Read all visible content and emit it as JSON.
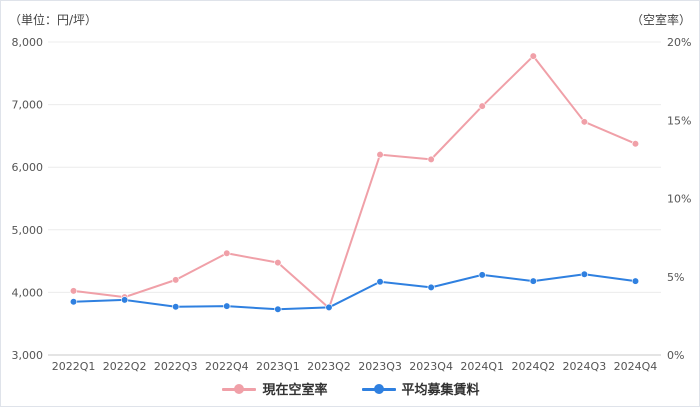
{
  "chart_data": {
    "type": "line",
    "y_left_unit": "（単位：円/坪）",
    "y_right_unit": "（空室率）",
    "categories": [
      "2022Q1",
      "2022Q2",
      "2022Q3",
      "2022Q4",
      "2023Q1",
      "2023Q2",
      "2023Q3",
      "2023Q4",
      "2024Q1",
      "2024Q2",
      "2024Q3",
      "2024Q4"
    ],
    "y_left_ticks": [
      "8,000",
      "7,000",
      "6,000",
      "5,000",
      "4,000",
      "3,000"
    ],
    "y_right_ticks": [
      "20%",
      "15%",
      "10%",
      "5%",
      "0%"
    ],
    "ylim_left": [
      3000,
      8000
    ],
    "ylim_right": [
      0,
      20
    ],
    "grid": true,
    "legend_position": "bottom",
    "series": [
      {
        "name": "現在空室率",
        "axis": "right",
        "color": "#f0a0a8",
        "values": [
          4.1,
          3.7,
          4.8,
          6.5,
          5.9,
          3.0,
          12.8,
          12.5,
          15.9,
          19.1,
          14.9,
          13.5
        ]
      },
      {
        "name": "平均募集賃料",
        "axis": "left",
        "color": "#2f80e0",
        "values": [
          3850,
          3880,
          3770,
          3780,
          3730,
          3760,
          4170,
          4080,
          4280,
          4180,
          4290,
          4180
        ]
      }
    ]
  }
}
